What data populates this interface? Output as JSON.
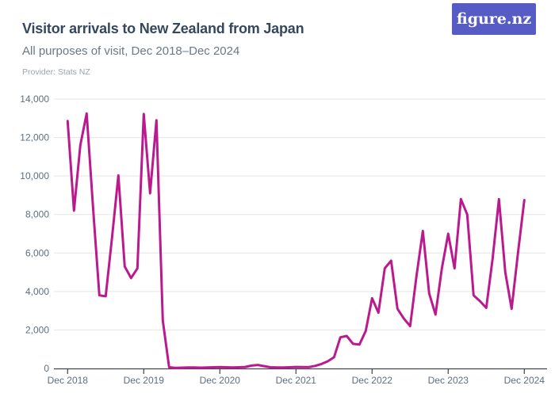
{
  "header": {
    "title": "Visitor arrivals to New Zealand from Japan",
    "subtitle": "All purposes of visit, Dec 2018–Dec 2024",
    "provider": "Provider: Stats NZ"
  },
  "logo": {
    "text": "figure.nz",
    "bg_color": "#565cc4",
    "text_color": "#ffffff"
  },
  "colors": {
    "line": "#ba1a8e",
    "gridline": "#e3e5e8",
    "axis": "#41464c",
    "axis_label": "#5d6f80"
  },
  "chart_data": {
    "type": "line",
    "title": "Visitor arrivals to New Zealand from Japan",
    "subtitle": "All purposes of visit, Dec 2018–Dec 2024",
    "xlabel": "",
    "ylabel": "",
    "ylim": [
      0,
      14000
    ],
    "y_ticks": [
      0,
      2000,
      4000,
      6000,
      8000,
      10000,
      12000,
      14000
    ],
    "y_tick_labels": [
      "0",
      "2,000",
      "4,000",
      "6,000",
      "8,000",
      "10,000",
      "12,000",
      "14,000"
    ],
    "x_tick_labels": [
      "Dec 2018",
      "Dec 2019",
      "Dec 2020",
      "Dec 2021",
      "Dec 2022",
      "Dec 2023",
      "Dec 2024"
    ],
    "x_tick_month_indices": [
      0,
      12,
      24,
      36,
      48,
      60,
      72
    ],
    "grid": "horizontal",
    "legend": "none",
    "months": [
      "Dec 2018",
      "Jan 2019",
      "Feb 2019",
      "Mar 2019",
      "Apr 2019",
      "May 2019",
      "Jun 2019",
      "Jul 2019",
      "Aug 2019",
      "Sep 2019",
      "Oct 2019",
      "Nov 2019",
      "Dec 2019",
      "Jan 2020",
      "Feb 2020",
      "Mar 2020",
      "Apr 2020",
      "May 2020",
      "Jun 2020",
      "Jul 2020",
      "Aug 2020",
      "Sep 2020",
      "Oct 2020",
      "Nov 2020",
      "Dec 2020",
      "Jan 2021",
      "Feb 2021",
      "Mar 2021",
      "Apr 2021",
      "May 2021",
      "Jun 2021",
      "Jul 2021",
      "Aug 2021",
      "Sep 2021",
      "Oct 2021",
      "Nov 2021",
      "Dec 2021",
      "Jan 2022",
      "Feb 2022",
      "Mar 2022",
      "Apr 2022",
      "May 2022",
      "Jun 2022",
      "Jul 2022",
      "Aug 2022",
      "Sep 2022",
      "Oct 2022",
      "Nov 2022",
      "Dec 2022",
      "Jan 2023",
      "Feb 2023",
      "Mar 2023",
      "Apr 2023",
      "May 2023",
      "Jun 2023",
      "Jul 2023",
      "Aug 2023",
      "Sep 2023",
      "Oct 2023",
      "Nov 2023",
      "Dec 2023",
      "Jan 2024",
      "Feb 2024",
      "Mar 2024",
      "Apr 2024",
      "May 2024",
      "Jun 2024",
      "Jul 2024",
      "Aug 2024",
      "Sep 2024",
      "Oct 2024",
      "Nov 2024",
      "Dec 2024"
    ],
    "series": [
      {
        "name": "Visitor arrivals from Japan",
        "values": [
          12860,
          8200,
          11600,
          13250,
          8400,
          3800,
          3750,
          6800,
          10030,
          5300,
          4700,
          5200,
          13220,
          9100,
          12900,
          2500,
          60,
          30,
          40,
          50,
          50,
          40,
          50,
          60,
          70,
          60,
          50,
          60,
          80,
          150,
          180,
          120,
          60,
          50,
          50,
          60,
          80,
          70,
          70,
          130,
          230,
          370,
          580,
          1620,
          1690,
          1280,
          1240,
          1950,
          3650,
          2900,
          5200,
          5600,
          3100,
          2600,
          2200,
          4800,
          7150,
          3900,
          2800,
          5200,
          7000,
          5200,
          8800,
          8000,
          3800,
          3500,
          3150,
          5700,
          8800,
          5000,
          3100,
          6000,
          8750
        ]
      }
    ]
  }
}
